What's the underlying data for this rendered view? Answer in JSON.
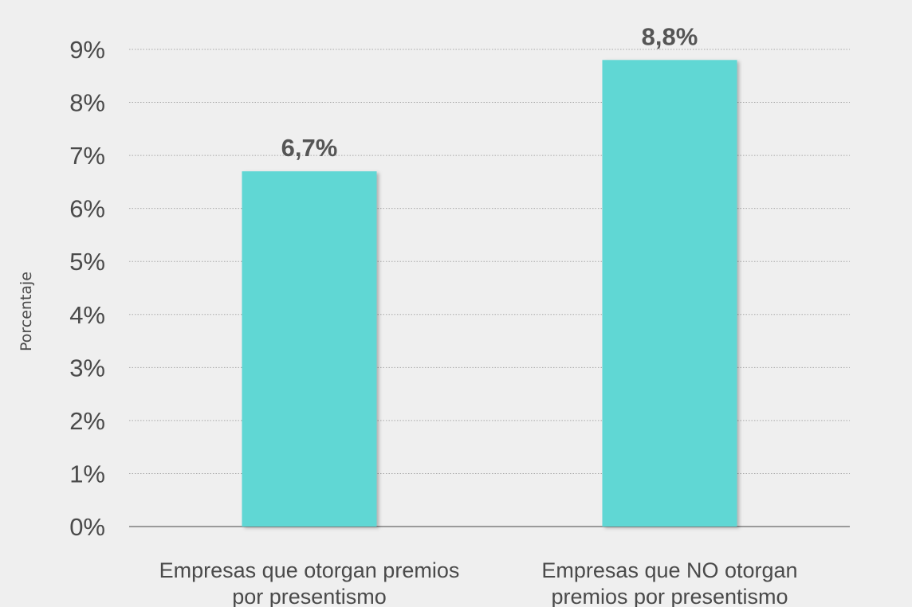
{
  "chart_data": {
    "type": "bar",
    "categories": [
      [
        "Empresas que otorgan premios",
        "por presentismo"
      ],
      [
        "Empresas que NO otorgan",
        "premios por presentismo"
      ]
    ],
    "values": [
      6.7,
      8.8
    ],
    "data_labels": [
      "6,7%",
      "8,8%"
    ],
    "ylabel": "Porcentaje",
    "ylim": [
      0,
      9
    ],
    "yticks": [
      0,
      1,
      2,
      3,
      4,
      5,
      6,
      7,
      8,
      9
    ],
    "ytick_labels": [
      "0%",
      "1%",
      "2%",
      "3%",
      "4%",
      "5%",
      "6%",
      "7%",
      "8%",
      "9%"
    ],
    "grid": true,
    "bar_color": "#60d7d4",
    "background_color": "#efefef"
  }
}
